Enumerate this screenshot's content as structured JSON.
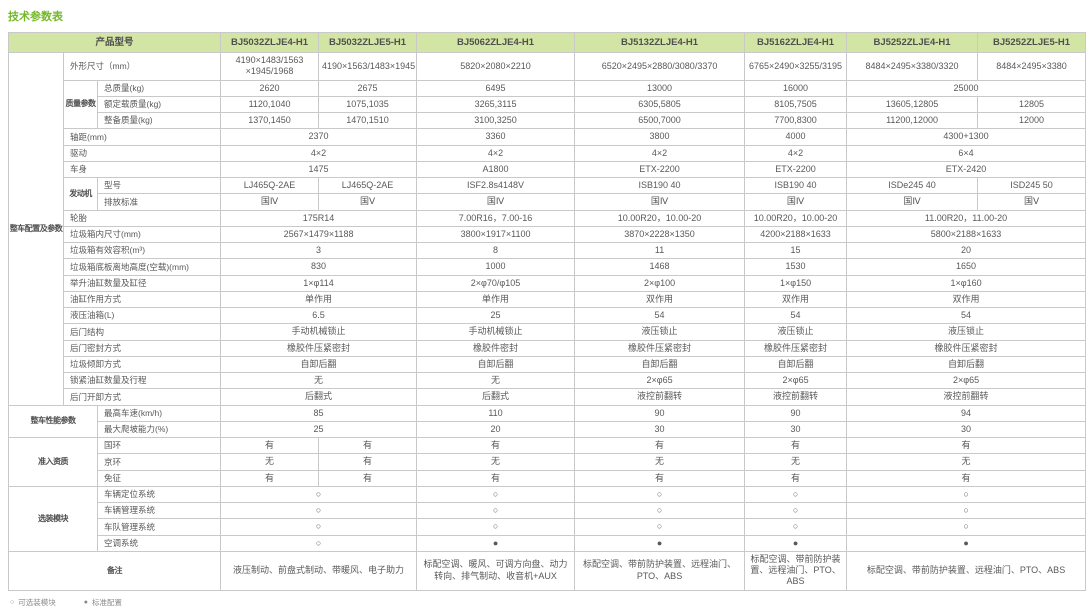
{
  "title": "技术参数表",
  "colors": {
    "accent_green": "#76b82a",
    "header_bg": "#d3e5a5",
    "header_text": "#4f4f4f",
    "border": "#c9c9c9",
    "text": "#595959"
  },
  "legend": {
    "items": [
      {
        "symbol": "○",
        "label": "可选装模块"
      },
      {
        "symbol": "●",
        "label": "标准配置"
      }
    ]
  },
  "table": {
    "product_label": "产品型号",
    "models": [
      "BJ5032ZLJE4-H1",
      "BJ5032ZLJE5-H1",
      "BJ5062ZLJE4-H1",
      "BJ5132ZLJE4-H1",
      "BJ5162ZLJE4-H1",
      "BJ5252ZLJE4-H1",
      "BJ5252ZLJE5-H1"
    ],
    "rows": [
      {
        "group": {
          "text": "整车配置及参数",
          "rows": 21,
          "cols": 1
        },
        "label": "外形尺寸（mm）",
        "label_cols": 2,
        "cells": [
          [
            "4190×1483/1563\n×1945/1968"
          ],
          [
            "4190×1563/1483×1945"
          ],
          [
            "5820×2080×2210"
          ],
          [
            "6520×2495×2880/3080/3370"
          ],
          [
            "6765×2490×3255/3195"
          ],
          [
            "8484×2495×3380/3320"
          ],
          [
            "8484×2495×3380"
          ]
        ]
      },
      {
        "subgroup": {
          "text": "质量参数",
          "rows": 3
        },
        "label": "总质量(kg)",
        "cells": [
          [
            "2620"
          ],
          [
            "2675"
          ],
          [
            "6495"
          ],
          [
            "13000"
          ],
          [
            "16000"
          ],
          [
            "25000",
            2
          ]
        ]
      },
      {
        "label": "额定载质量(kg)",
        "cells": [
          [
            "1120,1040"
          ],
          [
            "1075,1035"
          ],
          [
            "3265,3115"
          ],
          [
            "6305,5805"
          ],
          [
            "8105,7505"
          ],
          [
            "13605,12805"
          ],
          [
            "12805"
          ]
        ]
      },
      {
        "label": "整备质量(kg)",
        "cells": [
          [
            "1370,1450"
          ],
          [
            "1470,1510"
          ],
          [
            "3100,3250"
          ],
          [
            "6500,7000"
          ],
          [
            "7700,8300"
          ],
          [
            "11200,12000"
          ],
          [
            "12000"
          ]
        ]
      },
      {
        "label": "轴距(mm)",
        "label_cols": 2,
        "cells": [
          [
            "2370",
            2
          ],
          [
            "3360"
          ],
          [
            "3800"
          ],
          [
            "4000"
          ],
          [
            "4300+1300",
            2
          ]
        ]
      },
      {
        "label": "驱动",
        "label_cols": 2,
        "cells": [
          [
            "4×2",
            2
          ],
          [
            "4×2"
          ],
          [
            "4×2"
          ],
          [
            "4×2"
          ],
          [
            "6×4",
            2
          ]
        ]
      },
      {
        "label": "车身",
        "label_cols": 2,
        "cells": [
          [
            "1475",
            2
          ],
          [
            "A1800"
          ],
          [
            "ETX-2200"
          ],
          [
            "ETX-2200"
          ],
          [
            "ETX-2420",
            2
          ]
        ]
      },
      {
        "subgroup": {
          "text": "发动机",
          "rows": 2
        },
        "label": "型号",
        "cells": [
          [
            "LJ465Q-2AE"
          ],
          [
            "LJ465Q-2AE"
          ],
          [
            "ISF2.8s4148V"
          ],
          [
            "ISB190 40"
          ],
          [
            "ISB190 40"
          ],
          [
            "ISDe245 40"
          ],
          [
            "ISD245 50"
          ]
        ]
      },
      {
        "label": "排放标准",
        "cells": [
          [
            "国Ⅳ"
          ],
          [
            "国Ⅴ"
          ],
          [
            "国Ⅳ"
          ],
          [
            "国Ⅳ"
          ],
          [
            "国Ⅳ"
          ],
          [
            "国Ⅳ"
          ],
          [
            "国Ⅴ"
          ]
        ]
      },
      {
        "label": "轮胎",
        "label_cols": 2,
        "cells": [
          [
            "175R14",
            2
          ],
          [
            "7.00R16，7.00-16"
          ],
          [
            "10.00R20，10.00-20"
          ],
          [
            "10.00R20，10.00-20"
          ],
          [
            "11.00R20，11.00-20",
            2
          ]
        ]
      },
      {
        "label": "垃圾箱内尺寸(mm)",
        "label_cols": 2,
        "cells": [
          [
            "2567×1479×1188",
            2
          ],
          [
            "3800×1917×1100"
          ],
          [
            "3870×2228×1350"
          ],
          [
            "4200×2188×1633"
          ],
          [
            "5800×2188×1633",
            2
          ]
        ]
      },
      {
        "label": "垃圾箱有效容积(m³)",
        "label_cols": 2,
        "cells": [
          [
            "3",
            2
          ],
          [
            "8"
          ],
          [
            "11"
          ],
          [
            "15"
          ],
          [
            "20",
            2
          ]
        ]
      },
      {
        "label": "垃圾箱底板离地高度(空载)(mm)",
        "label_cols": 2,
        "cells": [
          [
            "830",
            2
          ],
          [
            "1000"
          ],
          [
            "1468"
          ],
          [
            "1530"
          ],
          [
            "1650",
            2
          ]
        ]
      },
      {
        "label": "举升油缸数量及缸径",
        "label_cols": 2,
        "cells": [
          [
            "1×φ114",
            2
          ],
          [
            "2×φ70/φ105"
          ],
          [
            "2×φ100"
          ],
          [
            "1×φ150"
          ],
          [
            "1×φ160",
            2
          ]
        ]
      },
      {
        "label": "油缸作用方式",
        "label_cols": 2,
        "cells": [
          [
            "单作用",
            2
          ],
          [
            "单作用"
          ],
          [
            "双作用"
          ],
          [
            "双作用"
          ],
          [
            "双作用",
            2
          ]
        ]
      },
      {
        "label": "液压油箱(L)",
        "label_cols": 2,
        "cells": [
          [
            "6.5",
            2
          ],
          [
            "25"
          ],
          [
            "54"
          ],
          [
            "54"
          ],
          [
            "54",
            2
          ]
        ]
      },
      {
        "label": "后门结构",
        "label_cols": 2,
        "cells": [
          [
            "手动机械锁止",
            2
          ],
          [
            "手动机械锁止"
          ],
          [
            "液压锁止"
          ],
          [
            "液压锁止"
          ],
          [
            "液压锁止",
            2
          ]
        ]
      },
      {
        "label": "后门密封方式",
        "label_cols": 2,
        "cells": [
          [
            "橡胶件压紧密封",
            2
          ],
          [
            "橡胶件密封"
          ],
          [
            "橡胶件压紧密封"
          ],
          [
            "橡胶件压紧密封"
          ],
          [
            "橡胶件压紧密封",
            2
          ]
        ]
      },
      {
        "label": "垃圾倾卸方式",
        "label_cols": 2,
        "cells": [
          [
            "自卸后翻",
            2
          ],
          [
            "自卸后翻"
          ],
          [
            "自卸后翻"
          ],
          [
            "自卸后翻"
          ],
          [
            "自卸后翻",
            2
          ]
        ]
      },
      {
        "label": "锁紧油缸数量及行程",
        "label_cols": 2,
        "cells": [
          [
            "无",
            2
          ],
          [
            "无"
          ],
          [
            "2×φ65"
          ],
          [
            "2×φ65"
          ],
          [
            "2×φ65",
            2
          ]
        ]
      },
      {
        "label": "后门开卸方式",
        "label_cols": 2,
        "cells": [
          [
            "后翻式",
            2
          ],
          [
            "后翻式"
          ],
          [
            "液控前翻转"
          ],
          [
            "液控前翻转"
          ],
          [
            "液控前翻转",
            2
          ]
        ]
      },
      {
        "group": {
          "text": "整车性能参数",
          "rows": 2,
          "cols": 2
        },
        "label": "最高车速(km/h)",
        "cells": [
          [
            "85",
            2
          ],
          [
            "110"
          ],
          [
            "90"
          ],
          [
            "90"
          ],
          [
            "94",
            2
          ]
        ]
      },
      {
        "label": "最大爬坡能力(%)",
        "cells": [
          [
            "25",
            2
          ],
          [
            "20"
          ],
          [
            "30"
          ],
          [
            "30"
          ],
          [
            "30",
            2
          ]
        ]
      },
      {
        "group": {
          "text": "准入资质",
          "rows": 3,
          "cols": 2
        },
        "label": "国环",
        "cells": [
          [
            "有"
          ],
          [
            "有"
          ],
          [
            "有"
          ],
          [
            "有"
          ],
          [
            "有"
          ],
          [
            "有",
            2
          ]
        ]
      },
      {
        "label": "京环",
        "cells": [
          [
            "无"
          ],
          [
            "有"
          ],
          [
            "无"
          ],
          [
            "无"
          ],
          [
            "无"
          ],
          [
            "无",
            2
          ]
        ]
      },
      {
        "label": "免征",
        "cells": [
          [
            "有"
          ],
          [
            "有"
          ],
          [
            "有"
          ],
          [
            "有"
          ],
          [
            "有"
          ],
          [
            "有",
            2
          ]
        ]
      },
      {
        "group": {
          "text": "选装模块",
          "rows": 4,
          "cols": 2
        },
        "label": "车辆定位系统",
        "cells": [
          [
            "○",
            2
          ],
          [
            "○"
          ],
          [
            "○"
          ],
          [
            "○"
          ],
          [
            "○",
            2
          ]
        ]
      },
      {
        "label": "车辆管理系统",
        "cells": [
          [
            "○",
            2
          ],
          [
            "○"
          ],
          [
            "○"
          ],
          [
            "○"
          ],
          [
            "○",
            2
          ]
        ]
      },
      {
        "label": "车队管理系统",
        "cells": [
          [
            "○",
            2
          ],
          [
            "○"
          ],
          [
            "○"
          ],
          [
            "○"
          ],
          [
            "○",
            2
          ]
        ]
      },
      {
        "label": "空调系统",
        "cells": [
          [
            "○",
            2
          ],
          [
            "●"
          ],
          [
            "●"
          ],
          [
            "●"
          ],
          [
            "●",
            2
          ]
        ]
      },
      {
        "label": "备注",
        "label_cols": 3,
        "cells": [
          [
            "液压制动、前盘式制动、带暖风、电子助力",
            2
          ],
          [
            "标配空调、暖风、可调方向盘、动力转向、排气制动、收音机+AUX"
          ],
          [
            "标配空调、带前防护装置、远程油门、PTO、ABS"
          ],
          [
            "标配空调、带前防护装置、远程油门、PTO、ABS"
          ],
          [
            "标配空调、带前防护装置、远程油门、PTO、ABS",
            2
          ]
        ]
      }
    ]
  }
}
